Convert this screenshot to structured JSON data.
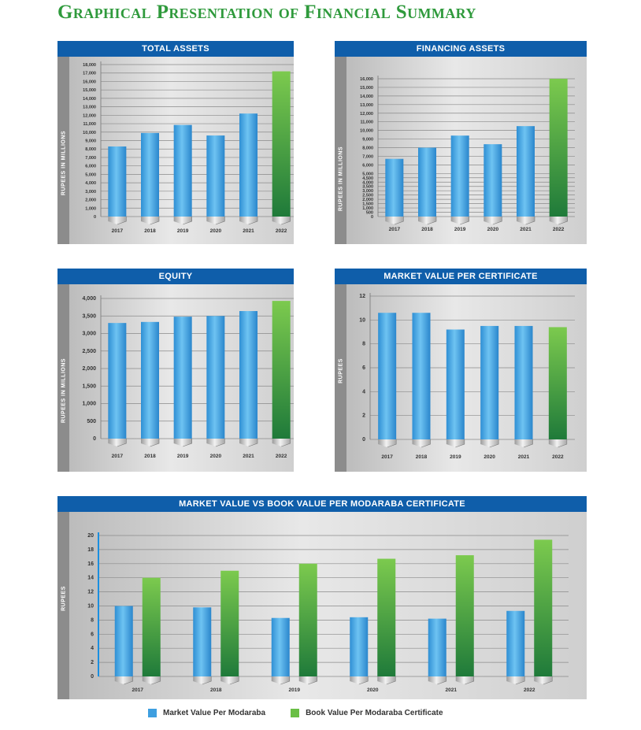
{
  "page_title": "Graphical Presentation of Financial Summary",
  "colors": {
    "market": "#3e9fe0",
    "book": "#6abf45",
    "header": "#0f5eaa"
  },
  "legend": [
    {
      "label": "Market Value Per Modaraba",
      "color": "#3e9fe0"
    },
    {
      "label": "Book Value Per Modaraba Certificate",
      "color": "#6abf45"
    }
  ],
  "chart_data": [
    {
      "title": "TOTAL ASSETS",
      "type": "bar",
      "ylabel": "RUPEES IN MILLIONS",
      "categories": [
        "2017",
        "2018",
        "2019",
        "2020",
        "2021",
        "2022"
      ],
      "values": [
        8300,
        9900,
        10850,
        9600,
        12200,
        17200
      ],
      "highlight_last": true,
      "ylim": [
        0,
        18000
      ],
      "yticks": [
        0,
        1000,
        2000,
        3000,
        4000,
        5000,
        6000,
        7000,
        8000,
        9000,
        10000,
        11000,
        12000,
        13000,
        14000,
        15000,
        16000,
        17000,
        18000
      ],
      "ytick_labels": [
        "0",
        "1,000",
        "2,000",
        "3,000",
        "4,000",
        "5,000",
        "6,000",
        "7,000",
        "8,000",
        "9,000",
        "10,000",
        "11,000",
        "12,000",
        "13,000",
        "14,000",
        "15,000",
        "16,000",
        "17,000",
        "18,000"
      ]
    },
    {
      "title": "FINANCING ASSETS",
      "type": "bar",
      "ylabel": "RUPEES IN MILLIONS",
      "categories": [
        "2017",
        "2018",
        "2019",
        "2020",
        "2021",
        "2022"
      ],
      "values": [
        6700,
        8000,
        9400,
        8400,
        10500,
        16000
      ],
      "highlight_last": true,
      "ylim": [
        0,
        16000
      ],
      "yticks": [
        0,
        500,
        1000,
        1500,
        2000,
        2500,
        3000,
        3500,
        4000,
        4500,
        5000,
        6000,
        7000,
        8000,
        9000,
        10000,
        11000,
        12000,
        13000,
        14000,
        15000,
        16000
      ],
      "ytick_labels": [
        "0",
        "500",
        "1,000",
        "1,500",
        "2,000",
        "2,500",
        "3,000",
        "3,500",
        "4,000",
        "4,500",
        "5,000",
        "6,000",
        "7,000",
        "8,000",
        "9,000",
        "10,000",
        "11,000",
        "12,000",
        "13,000",
        "14,000",
        "15,000",
        "16,000"
      ]
    },
    {
      "title": "EQUITY",
      "type": "bar",
      "ylabel": "RUPEES IN MILLIONS",
      "categories": [
        "2017",
        "2018",
        "2019",
        "2020",
        "2021",
        "2022"
      ],
      "values": [
        3300,
        3330,
        3480,
        3500,
        3640,
        3930
      ],
      "highlight_last": true,
      "ylim": [
        0,
        4000
      ],
      "yticks": [
        0,
        500,
        1000,
        1500,
        2000,
        2500,
        3000,
        3500,
        4000
      ],
      "ytick_labels": [
        "0",
        "500",
        "1,000",
        "1,500",
        "2,000",
        "2,500",
        "3,000",
        "3,500",
        "4,000"
      ]
    },
    {
      "title": "MARKET VALUE PER CERTIFICATE",
      "type": "bar",
      "ylabel": "RUPEES",
      "categories": [
        "2017",
        "2018",
        "2019",
        "2020",
        "2021",
        "2022"
      ],
      "values": [
        10.6,
        10.6,
        9.2,
        9.5,
        9.5,
        9.4
      ],
      "highlight_last": true,
      "ylim": [
        0,
        12
      ],
      "yticks": [
        0,
        2,
        4,
        6,
        8,
        10,
        12
      ],
      "ytick_labels": [
        "0",
        "2",
        "4",
        "6",
        "8",
        "10",
        "12"
      ]
    },
    {
      "title": "MARKET VALUE VS BOOK VALUE PER MODARABA CERTIFICATE",
      "type": "bar",
      "ylabel": "RUPEES",
      "categories": [
        "2017",
        "2018",
        "2019",
        "2020",
        "2021",
        "2022"
      ],
      "series": [
        {
          "name": "Market Value Per Modaraba",
          "values": [
            10.0,
            9.8,
            8.3,
            8.4,
            8.2,
            9.3
          ]
        },
        {
          "name": "Book Value Per Modaraba Certificate",
          "values": [
            14.0,
            15.0,
            16.0,
            16.7,
            17.2,
            19.4
          ]
        }
      ],
      "ylim": [
        0,
        20
      ],
      "yticks": [
        0,
        2,
        4,
        6,
        8,
        10,
        12,
        14,
        16,
        18,
        20
      ],
      "ytick_labels": [
        "0",
        "2",
        "4",
        "6",
        "8",
        "10",
        "12",
        "14",
        "16",
        "18",
        "20"
      ]
    }
  ]
}
